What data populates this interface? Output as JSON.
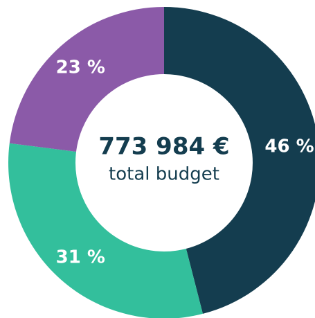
{
  "chart_data": {
    "type": "donut",
    "center_label": "773 984 €",
    "center_sublabel": "total budget",
    "values": [
      46,
      31,
      23
    ],
    "value_labels": [
      "46 %",
      "31 %",
      "23 %"
    ],
    "colors": [
      "#143d4f",
      "#33bf9c",
      "#8b5aa8"
    ]
  }
}
